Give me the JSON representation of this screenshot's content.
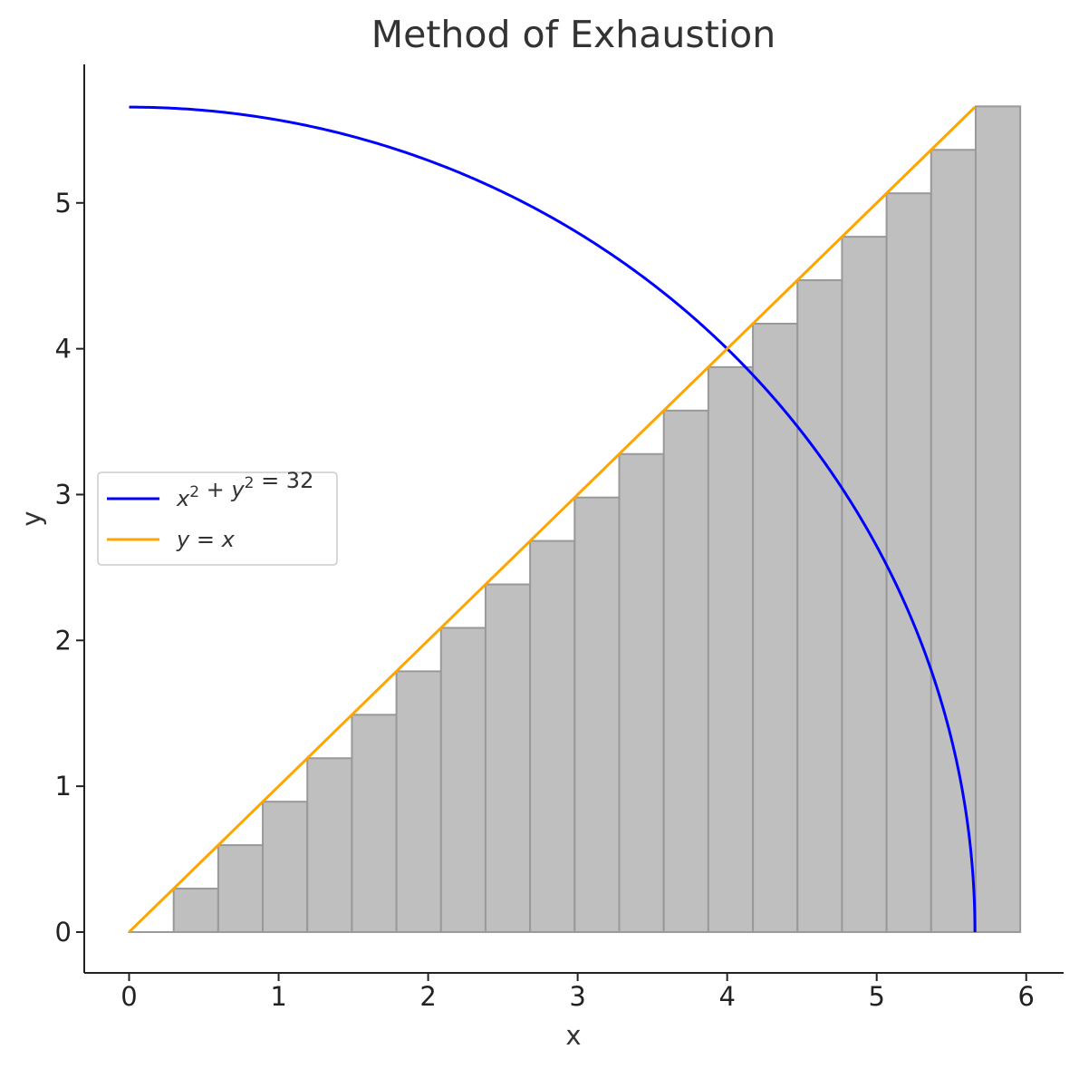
{
  "chart_data": {
    "type": "line",
    "title": "Method of Exhaustion",
    "xlabel": "x",
    "ylabel": "y",
    "xlim": [
      -0.3,
      6.25
    ],
    "ylim": [
      -0.28,
      5.95
    ],
    "xticks": [
      0,
      1,
      2,
      3,
      4,
      5,
      6
    ],
    "yticks": [
      0,
      1,
      2,
      3,
      4,
      5
    ],
    "grid": false,
    "legend_placement": "center-left",
    "series": [
      {
        "name": "x² + y² = 32",
        "legend_parts": [
          "x",
          "2",
          " + ",
          "y",
          "2",
          " = 32"
        ],
        "kind": "quarter-circle",
        "radius_squared": 32,
        "x_range": [
          0,
          5.657
        ],
        "color": "#0000ff"
      },
      {
        "name": "y = x",
        "legend_parts": [
          "y",
          " = ",
          "x"
        ],
        "kind": "line",
        "points": [
          [
            0,
            0
          ],
          [
            5.657,
            5.657
          ]
        ],
        "color": "#ffa500"
      }
    ],
    "bars": {
      "width": 0.298,
      "left_edges": [
        0,
        0.298,
        0.596,
        0.894,
        1.192,
        1.49,
        1.788,
        2.086,
        2.384,
        2.682,
        2.98,
        3.278,
        3.576,
        3.874,
        4.172,
        4.47,
        4.768,
        5.066,
        5.364,
        5.662
      ],
      "heights": [
        0,
        0.298,
        0.596,
        0.894,
        1.192,
        1.49,
        1.788,
        2.086,
        2.384,
        2.682,
        2.98,
        3.278,
        3.576,
        3.874,
        4.172,
        4.47,
        4.768,
        5.066,
        5.364,
        5.662
      ],
      "fill": "#bfbfbf",
      "edge": "#999999"
    }
  }
}
